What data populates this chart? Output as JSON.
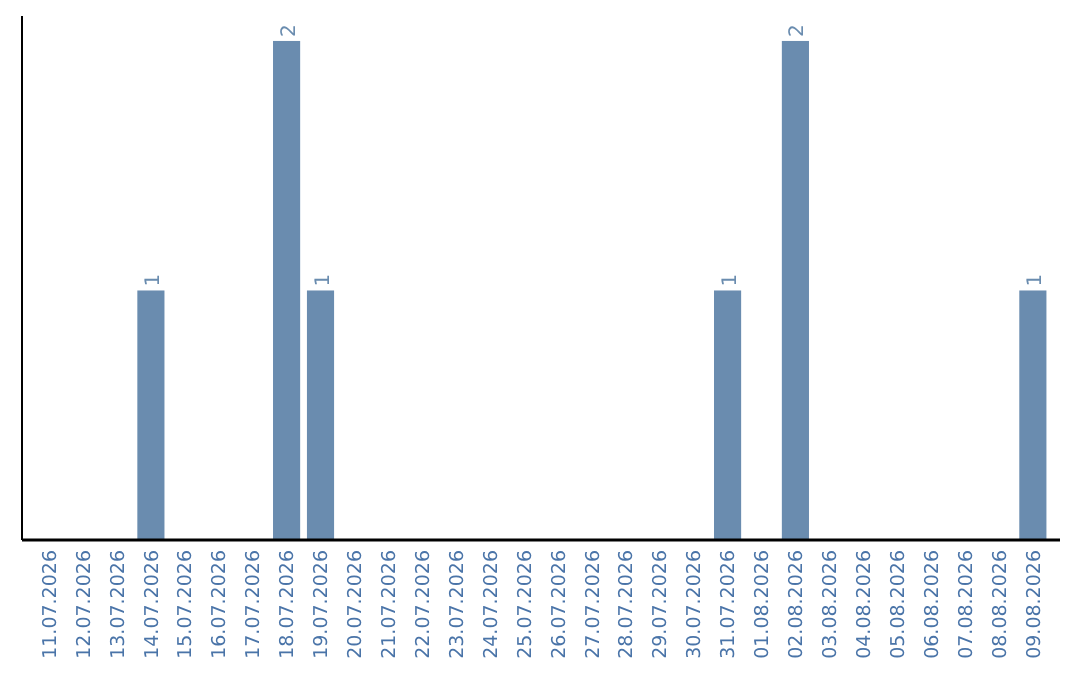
{
  "chart_data": {
    "type": "bar",
    "categories": [
      "11.07.2026",
      "12.07.2026",
      "13.07.2026",
      "14.07.2026",
      "15.07.2026",
      "16.07.2026",
      "17.07.2026",
      "18.07.2026",
      "19.07.2026",
      "20.07.2026",
      "21.07.2026",
      "22.07.2026",
      "23.07.2026",
      "24.07.2026",
      "25.07.2026",
      "26.07.2026",
      "27.07.2026",
      "28.07.2026",
      "29.07.2026",
      "30.07.2026",
      "31.07.2026",
      "01.08.2026",
      "02.08.2026",
      "03.08.2026",
      "04.08.2026",
      "05.08.2026",
      "06.08.2026",
      "07.08.2026",
      "08.08.2026",
      "09.08.2026"
    ],
    "values": [
      0,
      0,
      0,
      1,
      0,
      0,
      0,
      2,
      1,
      0,
      0,
      0,
      0,
      0,
      0,
      0,
      0,
      0,
      0,
      0,
      1,
      0,
      2,
      0,
      0,
      0,
      0,
      0,
      0,
      1
    ],
    "value_labels": [
      null,
      null,
      null,
      "1",
      null,
      null,
      null,
      "2",
      "1",
      null,
      null,
      null,
      null,
      null,
      null,
      null,
      null,
      null,
      null,
      null,
      "1",
      null,
      "2",
      null,
      null,
      null,
      null,
      null,
      null,
      "1"
    ],
    "color": "#6a8caf",
    "ylim": [
      0,
      2.1
    ],
    "tick_labels": "x"
  }
}
